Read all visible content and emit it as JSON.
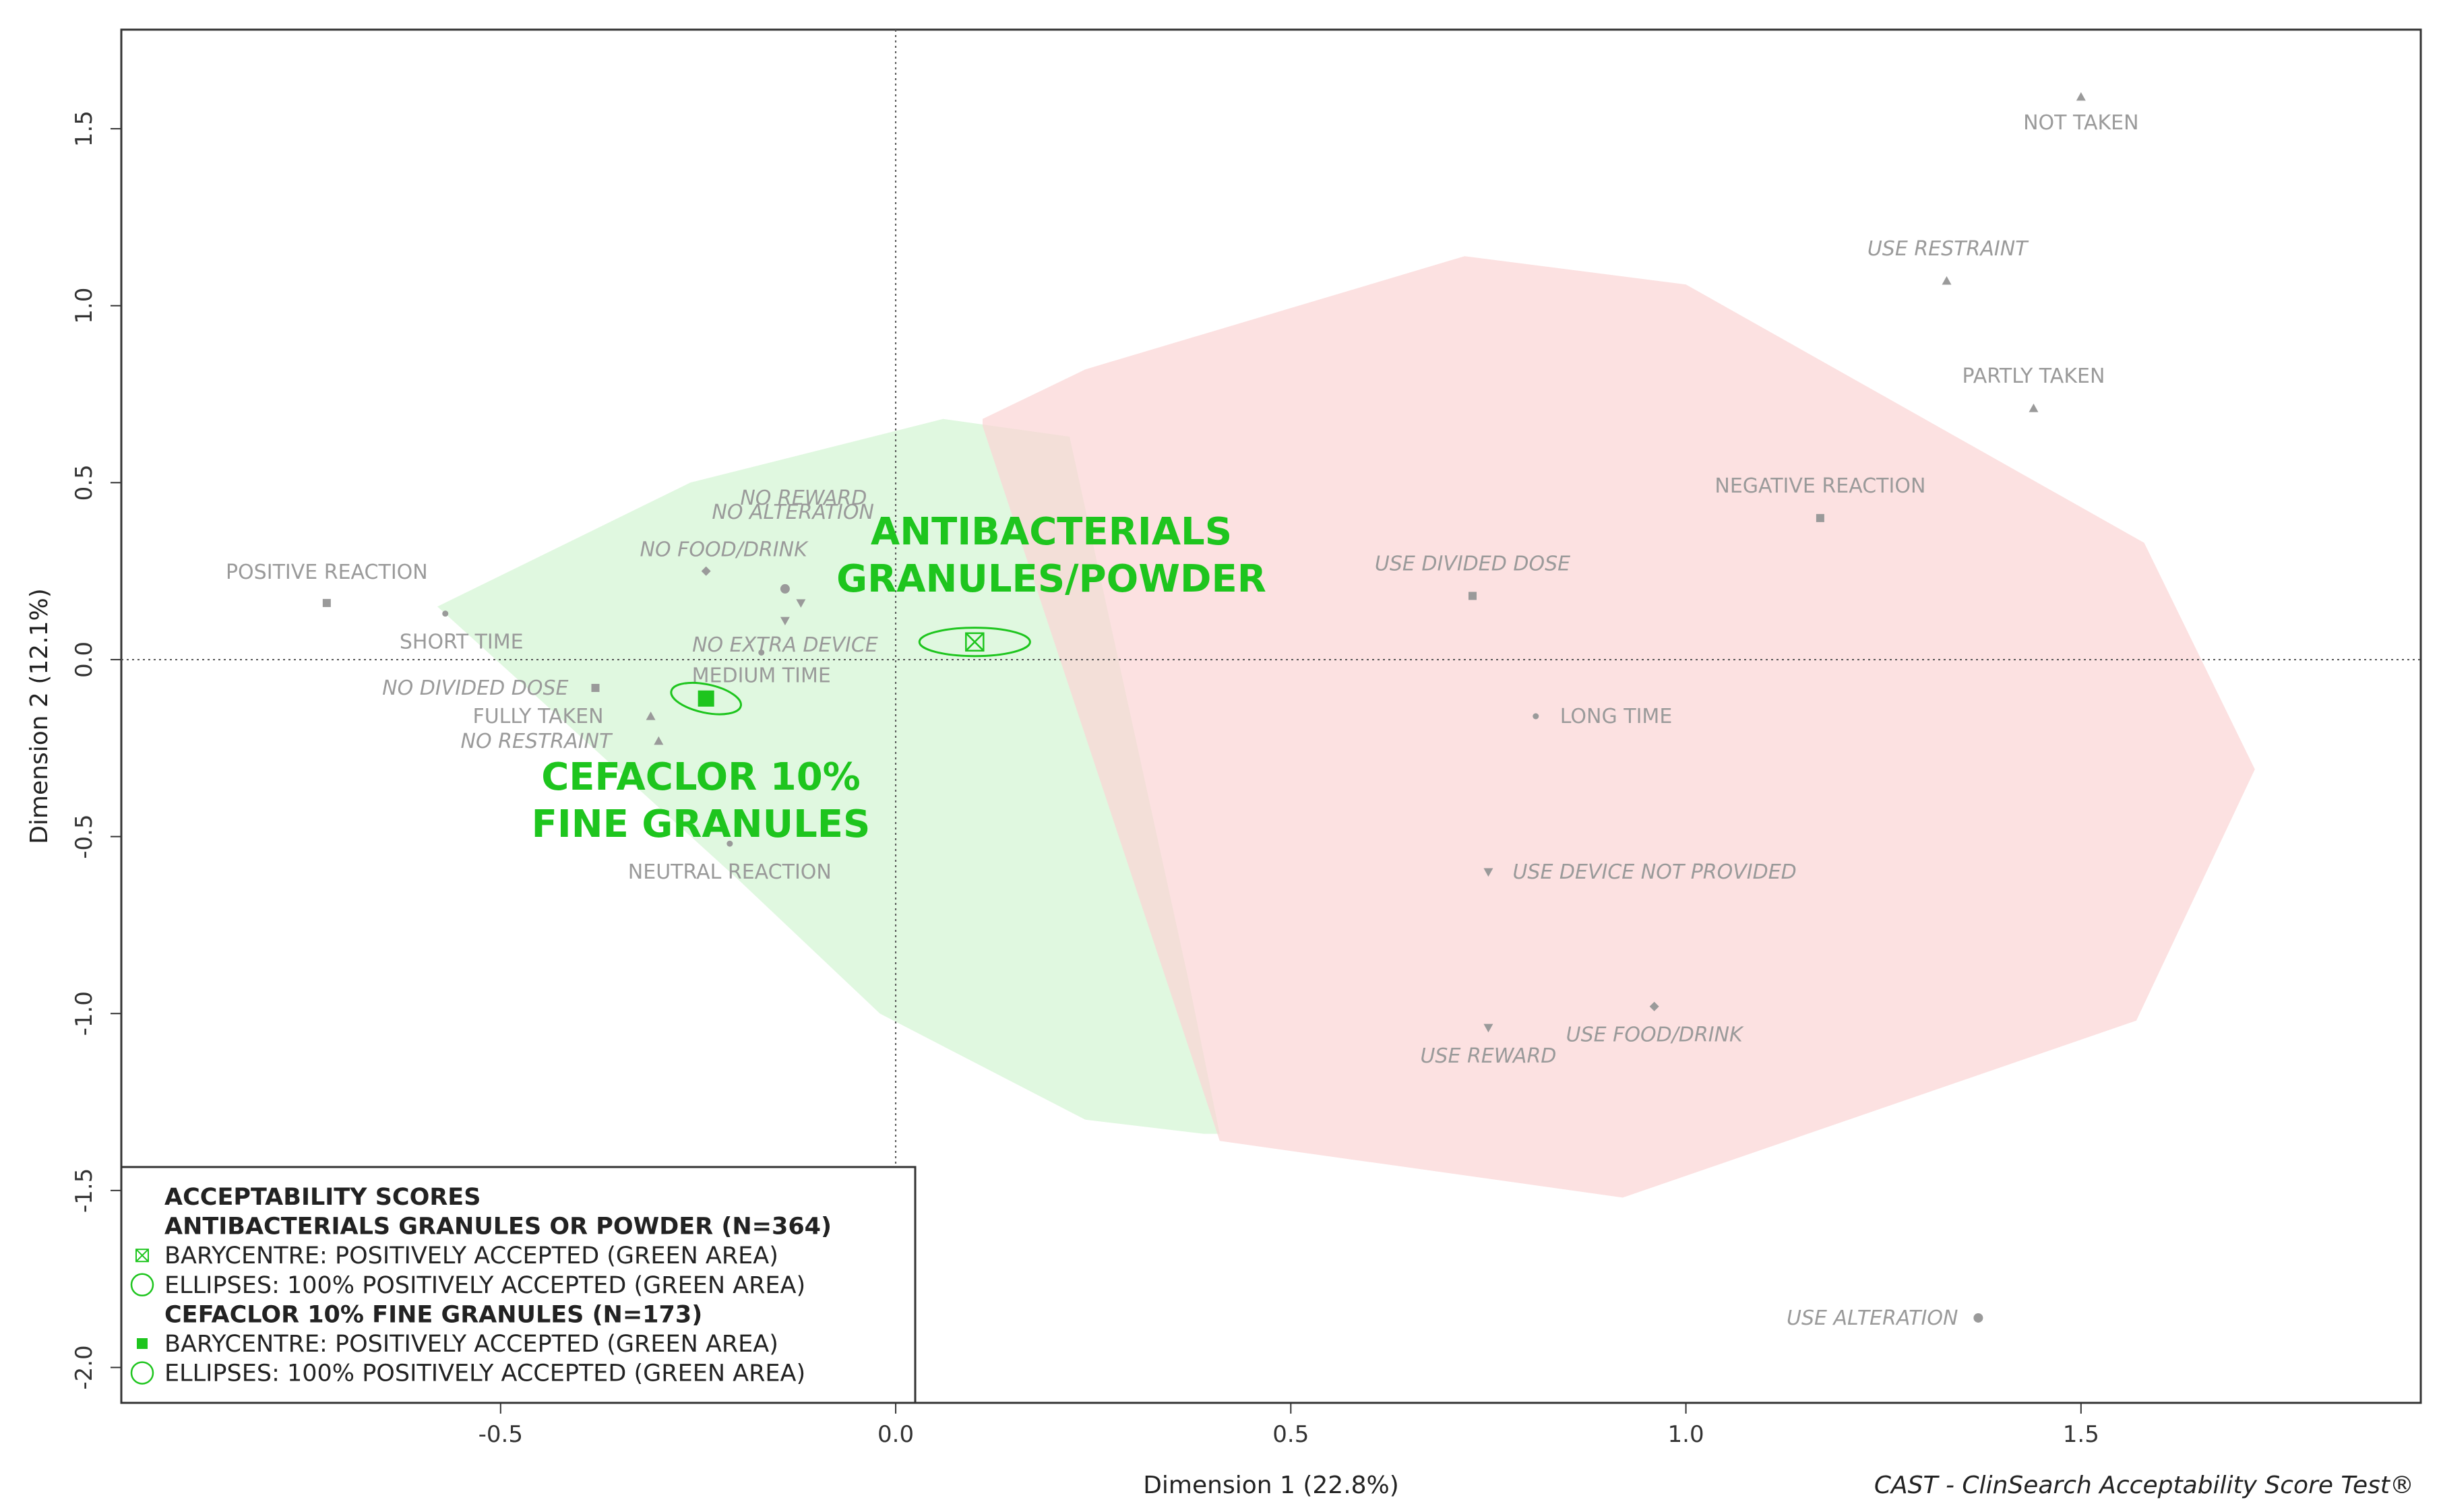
{
  "chart_data": {
    "type": "scatter",
    "title": "",
    "xlabel": "Dimension 1 (22.8%)",
    "ylabel": "Dimension 2 (12.1%)",
    "xlim": [
      -0.98,
      1.93
    ],
    "ylim": [
      -2.1,
      1.78
    ],
    "x_ticks": [
      -0.5,
      0.0,
      0.5,
      1.0,
      1.5
    ],
    "x_tick_labels": [
      "-0.5",
      "0.0",
      "0.5",
      "1.0",
      "1.5"
    ],
    "y_ticks": [
      -2.0,
      -1.5,
      -1.0,
      -0.5,
      0.0,
      0.5,
      1.0,
      1.5
    ],
    "y_tick_labels": [
      "-2.0",
      "-1.5",
      "-1.0",
      "-0.5",
      "0.0",
      "0.5",
      "1.0",
      "1.5"
    ],
    "reference_lines": {
      "x": 0.0,
      "y": 0.0
    },
    "caption": "CAST - ClinSearch Acceptability Score Test®",
    "colors": {
      "green_area": "#d6f5d6",
      "red_area": "#fbd4d4",
      "highlight": "#1ec51e",
      "points": "#9a9a9a"
    },
    "areas": [
      {
        "name": "positively accepted",
        "color": "green",
        "polygon": [
          [
            -0.58,
            0.15
          ],
          [
            -0.26,
            0.5
          ],
          [
            0.06,
            0.68
          ],
          [
            0.22,
            0.63
          ],
          [
            0.37,
            -0.9
          ],
          [
            0.41,
            -1.34
          ],
          [
            0.39,
            -1.34
          ],
          [
            0.24,
            -1.3
          ],
          [
            -0.02,
            -1.0
          ],
          [
            -0.2,
            -0.62
          ]
        ]
      },
      {
        "name": "negatively accepted",
        "color": "red",
        "polygon": [
          [
            0.11,
            0.68
          ],
          [
            0.24,
            0.82
          ],
          [
            0.72,
            1.14
          ],
          [
            1.0,
            1.06
          ],
          [
            1.58,
            0.33
          ],
          [
            1.72,
            -0.31
          ],
          [
            1.57,
            -1.02
          ],
          [
            0.92,
            -1.52
          ],
          [
            0.41,
            -1.36
          ],
          [
            0.11,
            0.66
          ]
        ]
      }
    ],
    "points": [
      {
        "label": "NOT TAKEN",
        "x": 1.5,
        "y": 1.59,
        "marker": "triangle",
        "italic": false
      },
      {
        "label": "USE RESTRAINT",
        "x": 1.33,
        "y": 1.07,
        "marker": "triangle",
        "italic": true
      },
      {
        "label": "PARTLY TAKEN",
        "x": 1.44,
        "y": 0.71,
        "marker": "triangle",
        "italic": false
      },
      {
        "label": "NEGATIVE REACTION",
        "x": 1.17,
        "y": 0.4,
        "marker": "square",
        "italic": false
      },
      {
        "label": "USE DIVIDED DOSE",
        "x": 0.73,
        "y": 0.18,
        "marker": "square",
        "italic": true
      },
      {
        "label": "LONG TIME",
        "x": 0.81,
        "y": -0.16,
        "marker": "dot",
        "italic": false
      },
      {
        "label": "USE DEVICE NOT PROVIDED",
        "x": 0.75,
        "y": -0.6,
        "marker": "triangle-down",
        "italic": true
      },
      {
        "label": "USE FOOD/DRINK",
        "x": 0.96,
        "y": -0.98,
        "marker": "diamond",
        "italic": true
      },
      {
        "label": "USE REWARD",
        "x": 0.75,
        "y": -1.04,
        "marker": "triangle-down",
        "italic": true
      },
      {
        "label": "USE ALTERATION",
        "x": 1.37,
        "y": -1.86,
        "marker": "circle",
        "italic": true
      },
      {
        "label": "POSITIVE REACTION",
        "x": -0.72,
        "y": 0.16,
        "marker": "square",
        "italic": false
      },
      {
        "label": "SHORT TIME",
        "x": -0.57,
        "y": 0.13,
        "marker": "dot",
        "italic": false
      },
      {
        "label": "NO FOOD/DRINK",
        "x": -0.24,
        "y": 0.25,
        "marker": "diamond",
        "italic": true
      },
      {
        "label": "NO REWARD",
        "x": -0.12,
        "y": 0.16,
        "marker": "triangle-down",
        "italic": true
      },
      {
        "label": "NO ALTERATION",
        "x": -0.14,
        "y": 0.2,
        "marker": "circle",
        "italic": true
      },
      {
        "label": "NO EXTRA DEVICE",
        "x": -0.14,
        "y": 0.11,
        "marker": "triangle-down",
        "italic": true
      },
      {
        "label": "MEDIUM TIME",
        "x": -0.17,
        "y": 0.02,
        "marker": "dot",
        "italic": false
      },
      {
        "label": "NO DIVIDED DOSE",
        "x": -0.38,
        "y": -0.08,
        "marker": "square",
        "italic": true
      },
      {
        "label": "FULLY TAKEN",
        "x": -0.31,
        "y": -0.16,
        "marker": "triangle",
        "italic": false
      },
      {
        "label": "NO RESTRAINT",
        "x": -0.3,
        "y": -0.23,
        "marker": "triangle",
        "italic": true
      },
      {
        "label": "NEUTRAL REACTION",
        "x": -0.21,
        "y": -0.52,
        "marker": "dot",
        "italic": false
      }
    ],
    "groups": [
      {
        "name": "ANTIBACTERIALS GRANULES/POWDER",
        "label_lines": [
          "ANTIBACTERIALS",
          "GRANULES/POWDER"
        ],
        "barycentre": {
          "x": 0.1,
          "y": 0.05,
          "marker": "crossed-square"
        },
        "ellipse": {
          "cx": 0.1,
          "cy": 0.05,
          "rx": 0.07,
          "ry": 0.04
        }
      },
      {
        "name": "CEFACLOR 10% FINE GRANULES",
        "label_lines": [
          "CEFACLOR 10%",
          "FINE GRANULES"
        ],
        "barycentre": {
          "x": -0.24,
          "y": -0.11,
          "marker": "filled-square"
        },
        "ellipse": {
          "cx": -0.24,
          "cy": -0.11,
          "rx": 0.045,
          "ry": 0.04
        }
      }
    ],
    "legend": {
      "position": "bottom-left",
      "title": "ACCEPTABILITY SCORES",
      "entries": [
        {
          "type": "heading",
          "text": "ANTIBACTERIALS GRANULES OR POWDER (N=364)"
        },
        {
          "type": "item",
          "symbol": "crossed-square",
          "text": "BARYCENTRE: POSITIVELY ACCEPTED (GREEN AREA)"
        },
        {
          "type": "item",
          "symbol": "ellipse",
          "text": "ELLIPSES: 100% POSITIVELY ACCEPTED (GREEN AREA)"
        },
        {
          "type": "heading",
          "text": "CEFACLOR 10% FINE GRANULES (N=173)"
        },
        {
          "type": "item",
          "symbol": "filled-square",
          "text": "BARYCENTRE: POSITIVELY ACCEPTED (GREEN AREA)"
        },
        {
          "type": "item",
          "symbol": "ellipse",
          "text": "ELLIPSES: 100% POSITIVELY ACCEPTED (GREEN AREA)"
        }
      ]
    }
  }
}
